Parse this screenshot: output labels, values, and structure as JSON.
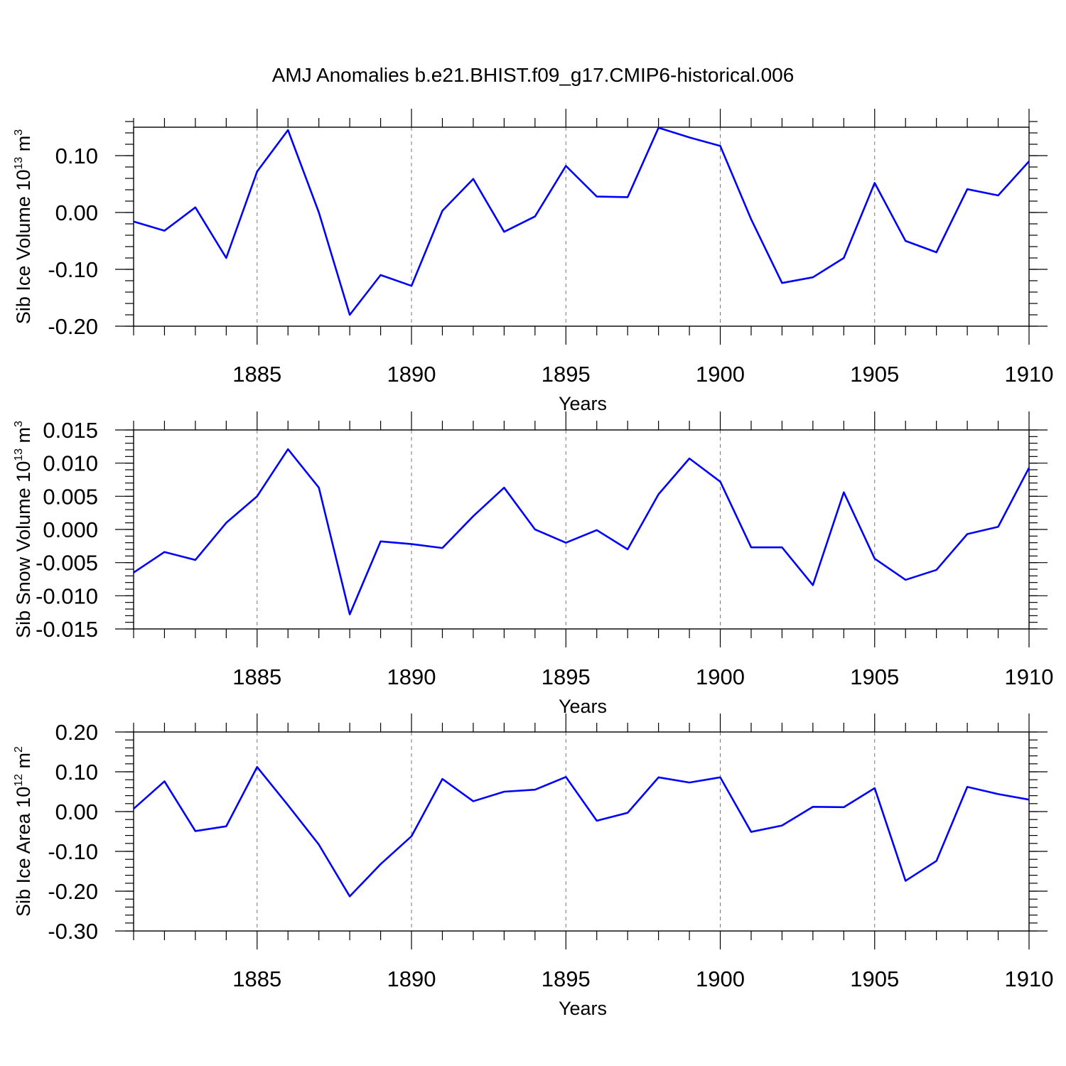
{
  "title": "AMJ Anomalies b.e21.BHIST.f09_g17.CMIP6-historical.006",
  "colors": {
    "line": "#0000ff",
    "axis": "#000000",
    "grid": "#777777"
  },
  "chart_data": [
    {
      "type": "line",
      "id": "ice_volume",
      "ylabel": {
        "prefix": "Sib Ice Volume 10",
        "exp": "13",
        "unit": " m",
        "unit_exp": "3"
      },
      "xlabel": "Years",
      "xlim": [
        1881,
        1910
      ],
      "ylim": [
        -0.2,
        0.15
      ],
      "yticks": [
        -0.2,
        -0.1,
        0.0,
        0.1
      ],
      "ytick_labels": [
        "-0.20",
        "-0.10",
        "0.00",
        "0.10"
      ],
      "yminor": 0.02,
      "xticks": [
        1885,
        1890,
        1895,
        1900,
        1905,
        1910
      ],
      "xtick_labels": [
        "1885",
        "1890",
        "1895",
        "1900",
        "1905",
        "1910"
      ],
      "x": [
        1881,
        1882,
        1883,
        1884,
        1885,
        1886,
        1887,
        1888,
        1889,
        1890,
        1891,
        1892,
        1893,
        1894,
        1895,
        1896,
        1897,
        1898,
        1899,
        1900,
        1901,
        1902,
        1903,
        1904,
        1905,
        1906,
        1907,
        1908,
        1909,
        1910
      ],
      "values": [
        -0.016,
        -0.032,
        0.009,
        -0.08,
        0.072,
        0.145,
        0.0,
        -0.18,
        -0.11,
        -0.129,
        0.003,
        0.059,
        -0.034,
        -0.007,
        0.082,
        0.028,
        0.027,
        0.149,
        0.132,
        0.117,
        -0.012,
        -0.124,
        -0.114,
        -0.08,
        0.052,
        -0.05,
        -0.07,
        0.041,
        0.03,
        0.09
      ]
    },
    {
      "type": "line",
      "id": "snow_volume",
      "ylabel": {
        "prefix": "Sib Snow Volume 10",
        "exp": "13",
        "unit": " m",
        "unit_exp": "3"
      },
      "xlabel": "Years",
      "xlim": [
        1881,
        1910
      ],
      "ylim": [
        -0.015,
        0.015
      ],
      "yticks": [
        -0.015,
        -0.01,
        -0.005,
        0.0,
        0.005,
        0.01,
        0.015
      ],
      "ytick_labels": [
        "-0.015",
        "-0.010",
        "-0.005",
        "0.000",
        "0.005",
        "0.010",
        "0.015"
      ],
      "yminor": 0.001,
      "xticks": [
        1885,
        1890,
        1895,
        1900,
        1905,
        1910
      ],
      "xtick_labels": [
        "1885",
        "1890",
        "1895",
        "1900",
        "1905",
        "1910"
      ],
      "x": [
        1881,
        1882,
        1883,
        1884,
        1885,
        1886,
        1887,
        1888,
        1889,
        1890,
        1891,
        1892,
        1893,
        1894,
        1895,
        1896,
        1897,
        1898,
        1899,
        1900,
        1901,
        1902,
        1903,
        1904,
        1905,
        1906,
        1907,
        1908,
        1909,
        1910
      ],
      "values": [
        -0.0065,
        -0.0034,
        -0.0046,
        0.001,
        0.005,
        0.0121,
        0.0063,
        -0.0128,
        -0.0018,
        -0.0022,
        -0.0028,
        0.002,
        0.0063,
        0.0,
        -0.002,
        -0.0001,
        -0.003,
        0.0053,
        0.0107,
        0.0072,
        -0.0027,
        -0.0027,
        -0.0084,
        0.0056,
        -0.0044,
        -0.0076,
        -0.0061,
        -0.0007,
        0.0004,
        0.0093
      ]
    },
    {
      "type": "line",
      "id": "ice_area",
      "ylabel": {
        "prefix": "Sib Ice Area 10",
        "exp": "12",
        "unit": " m",
        "unit_exp": "2"
      },
      "xlabel": "Years",
      "xlim": [
        1881,
        1910
      ],
      "ylim": [
        -0.3,
        0.2
      ],
      "yticks": [
        -0.3,
        -0.2,
        -0.1,
        0.0,
        0.1,
        0.2
      ],
      "ytick_labels": [
        "-0.30",
        "-0.20",
        "-0.10",
        "0.00",
        "0.10",
        "0.20"
      ],
      "yminor": 0.02,
      "xticks": [
        1885,
        1890,
        1895,
        1900,
        1905,
        1910
      ],
      "xtick_labels": [
        "1885",
        "1890",
        "1895",
        "1900",
        "1905",
        "1910"
      ],
      "x": [
        1881,
        1882,
        1883,
        1884,
        1885,
        1886,
        1887,
        1888,
        1889,
        1890,
        1891,
        1892,
        1893,
        1894,
        1895,
        1896,
        1897,
        1898,
        1899,
        1900,
        1901,
        1902,
        1903,
        1904,
        1905,
        1906,
        1907,
        1908,
        1909,
        1910
      ],
      "values": [
        0.007,
        0.076,
        -0.049,
        -0.037,
        0.112,
        0.016,
        -0.083,
        -0.213,
        -0.132,
        -0.062,
        0.082,
        0.026,
        0.05,
        0.055,
        0.087,
        -0.023,
        -0.003,
        0.086,
        0.073,
        0.086,
        -0.051,
        -0.035,
        0.012,
        0.011,
        0.059,
        -0.174,
        -0.124,
        0.062,
        0.044,
        0.03
      ]
    }
  ]
}
